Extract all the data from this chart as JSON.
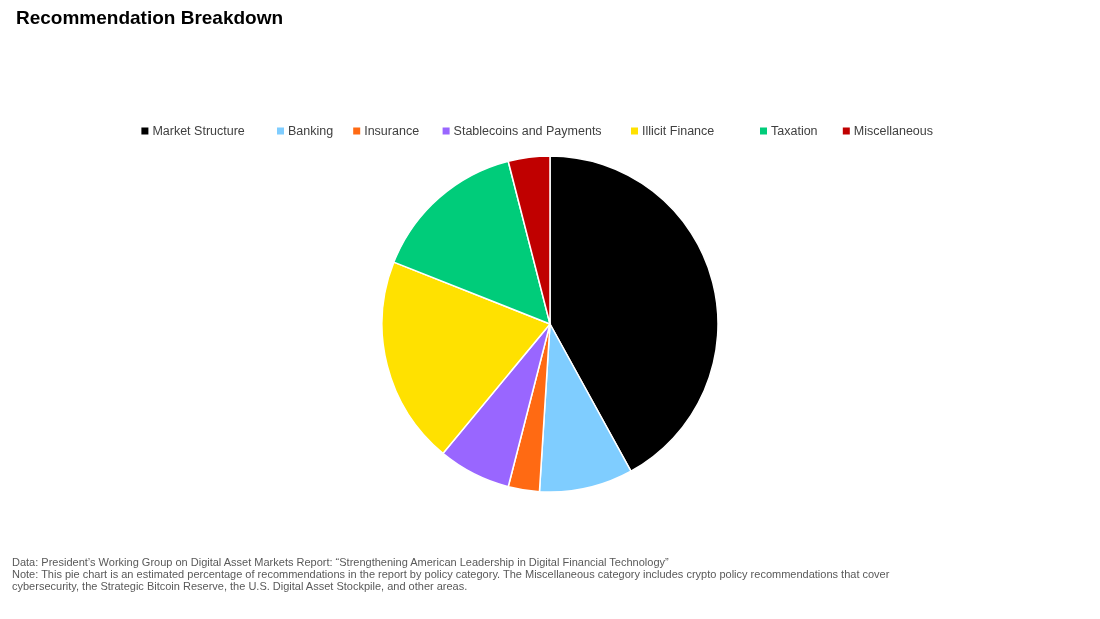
{
  "chart_data": {
    "type": "pie",
    "title": "Recommendation Breakdown",
    "categories": [
      "Market Structure",
      "Banking",
      "Insurance",
      "Stablecoins and Payments",
      "Illicit Finance",
      "Taxation",
      "Miscellaneous"
    ],
    "values": [
      42,
      9,
      3,
      7,
      20,
      15,
      4
    ],
    "colors": [
      "#000000",
      "#7fcdff",
      "#ff6a13",
      "#9966ff",
      "#ffe100",
      "#00cc7a",
      "#c00000"
    ],
    "legend": "top",
    "annotations": [
      "Data: President’s Working Group on Digital Asset Markets Report: “Strengthening American Leadership in Digital Financial Technology”",
      "Note: This pie chart is an estimated percentage of recommendations in the report by policy category. The Miscellaneous category includes crypto policy recommendations that cover cybersecurity, the Strategic Bitcoin Reserve, the U.S. Digital Asset Stockpile, and other areas."
    ]
  }
}
